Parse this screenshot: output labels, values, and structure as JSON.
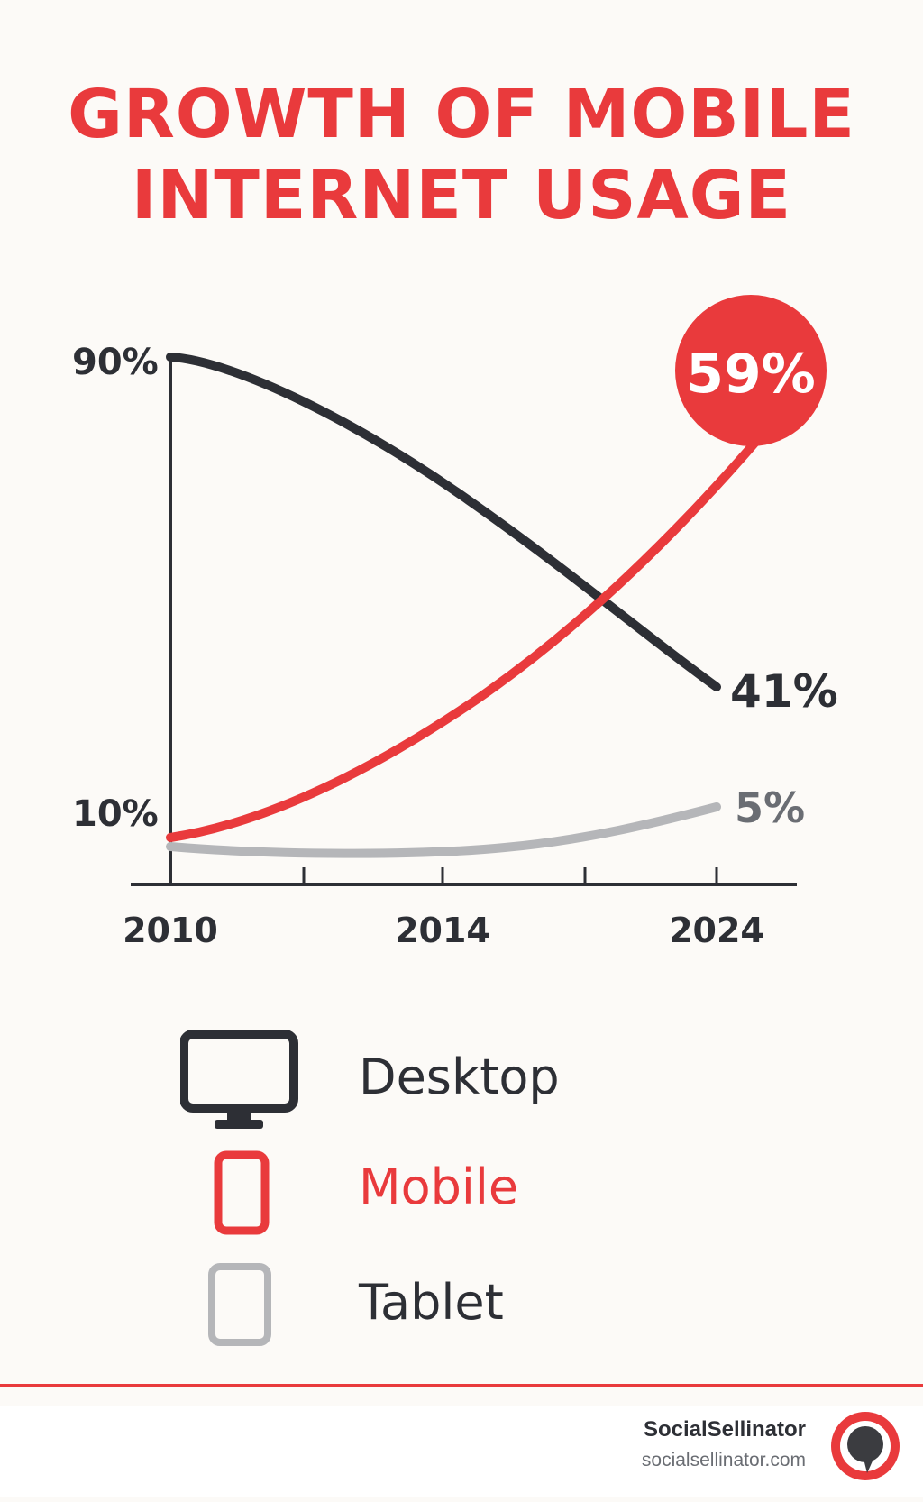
{
  "chart_data": {
    "type": "line",
    "title_lines": [
      "GROWTH OF MOBILE",
      "INTERNET USAGE"
    ],
    "x_tick_labels": [
      "2010",
      "2014",
      "2024"
    ],
    "y_tick_labels": [
      "90%",
      "10%"
    ],
    "series": [
      {
        "name": "Desktop",
        "color": "#2d2f35",
        "start": 90,
        "end": 41,
        "end_label": "41%"
      },
      {
        "name": "Mobile",
        "color": "#e93a3c",
        "start": 10,
        "end": 59,
        "end_label": "59%"
      },
      {
        "name": "Tablet",
        "color": "#b5b6b9",
        "start": 8,
        "end": 5,
        "end_label": "5%"
      }
    ],
    "legend": [
      {
        "label": "Desktop",
        "icon": "desktop-monitor-icon",
        "color": "#2d2f35",
        "text_color": "#2d2f35"
      },
      {
        "label": "Mobile",
        "icon": "mobile-phone-icon",
        "color": "#e93a3c",
        "text_color": "#e93a3c"
      },
      {
        "label": "Tablet",
        "icon": "tablet-icon",
        "color": "#b5b6b9",
        "text_color": "#2d2f35"
      }
    ]
  },
  "footer": {
    "brand_name": "SocialSellinator",
    "brand_url": "socialsellinator.com",
    "logo_icon": "speech-bubble-logo-icon"
  }
}
